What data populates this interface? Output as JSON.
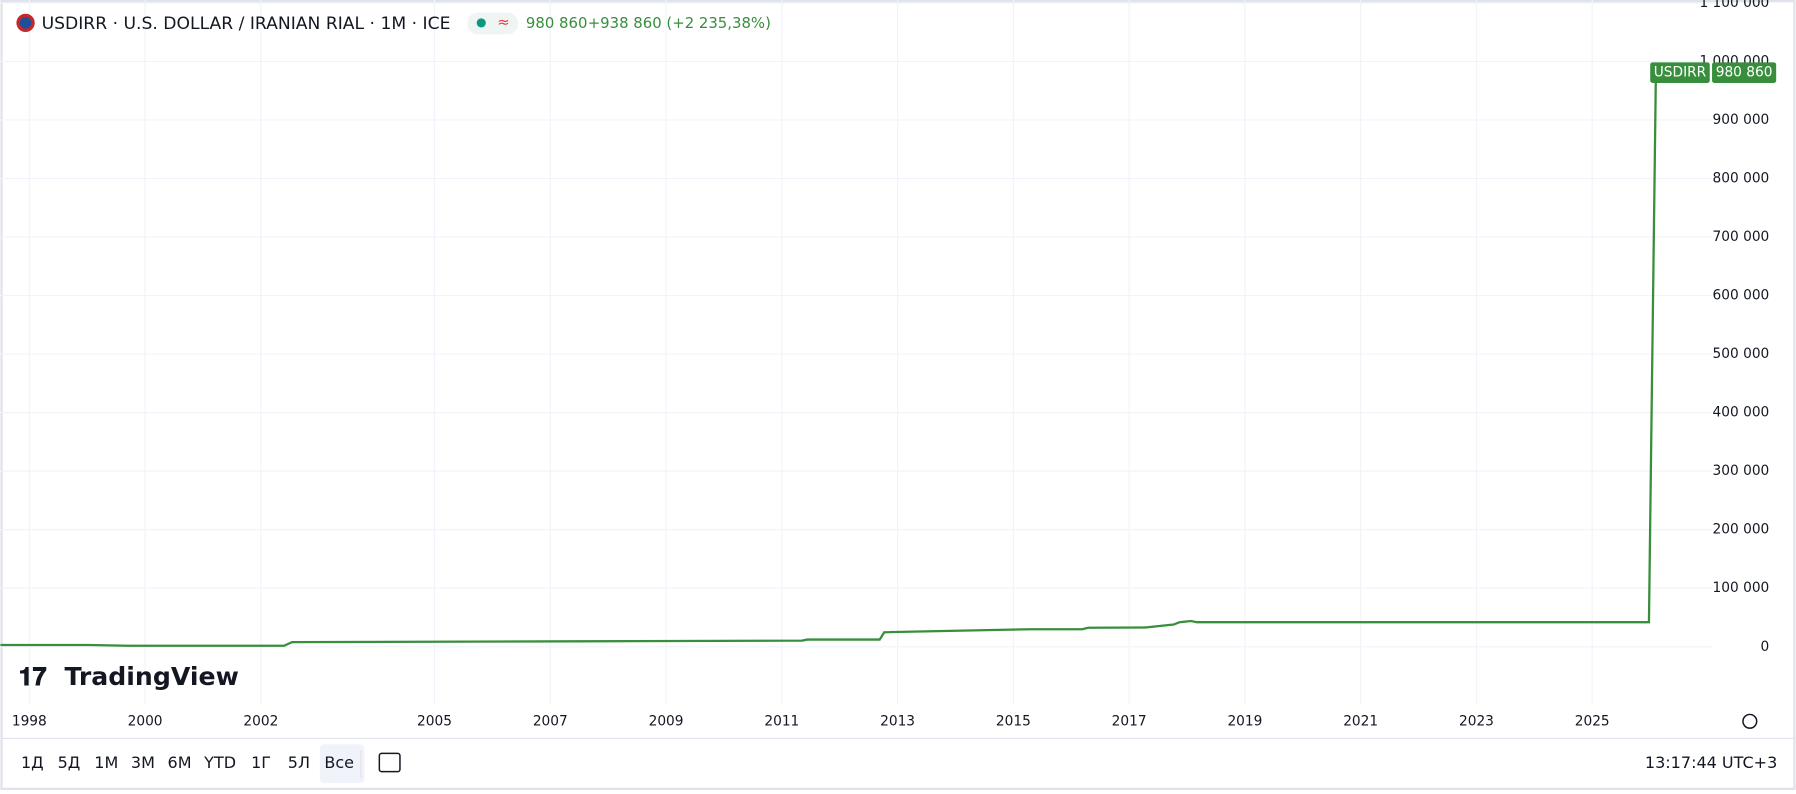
{
  "chart_data": {
    "type": "line",
    "title": "USDIRR · U.S. DOLLAR / IRANIAN RIAL · 1M · ICE",
    "change": "+938 860 (+2 235,38%)",
    "watermark": "TradingView",
    "x": [
      1997.5,
      1999.04,
      1999.73,
      2002.4,
      2002.54,
      2007.49,
      2011.35,
      2011.44,
      2012.69,
      2012.77,
      2015.3,
      2016.19,
      2016.29,
      2017.28,
      2017.77,
      2017.87,
      2018.07,
      2018.17,
      2025.98,
      2026.1
    ],
    "series": [
      {
        "name": "USDIRR",
        "color": "#388e3c",
        "values": [
          3000,
          3000,
          1750,
          1750,
          8000,
          9300,
          10500,
          12300,
          12300,
          24800,
          30000,
          30000,
          32500,
          33000,
          38000,
          42000,
          44000,
          42000,
          42000,
          980860
        ],
        "value_labels": [
          null,
          null,
          null,
          null,
          null,
          null,
          null,
          null,
          null,
          null,
          null,
          null,
          null,
          null,
          null,
          null,
          null,
          null,
          null,
          "980 860"
        ]
      }
    ],
    "xlim": [
      1997.5,
      2027.07
    ],
    "xticks": [
      1998,
      2000,
      2002,
      2005,
      2007,
      2009,
      2011,
      2013,
      2015,
      2017,
      2019,
      2021,
      2023,
      2025
    ],
    "ylim": [
      -98000,
      1105000
    ],
    "yticks": [
      {
        "value": 0,
        "label": "0"
      },
      {
        "value": 100000,
        "label": "100 000"
      },
      {
        "value": 200000,
        "label": "200 000"
      },
      {
        "value": 300000,
        "label": "300 000"
      },
      {
        "value": 400000,
        "label": "400 000"
      },
      {
        "value": 500000,
        "label": "500 000"
      },
      {
        "value": 600000,
        "label": "600 000"
      },
      {
        "value": 700000,
        "label": "700 000"
      },
      {
        "value": 800000,
        "label": "800 000"
      },
      {
        "value": 900000,
        "label": "900 000"
      },
      {
        "value": 1000000,
        "label": "1 000 000"
      },
      {
        "value": 1100000,
        "label": "1 100 000"
      }
    ],
    "grid": true
  },
  "toolbar": {
    "ranges": [
      "1Д",
      "5Д",
      "1М",
      "3М",
      "6М",
      "YTD",
      "1Г",
      "5Л",
      "Все"
    ],
    "clock": "13:17:44 UTC+3"
  }
}
